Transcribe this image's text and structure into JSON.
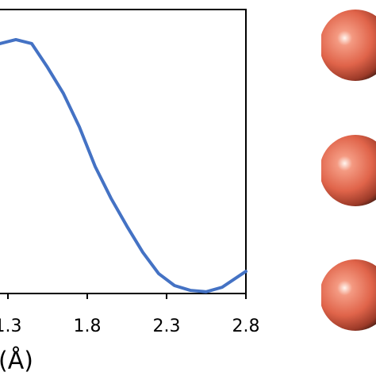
{
  "chart_data": {
    "type": "line",
    "x_label": "(Å)",
    "x": [
      1.25,
      1.35,
      1.45,
      1.55,
      1.65,
      1.75,
      1.85,
      1.95,
      2.05,
      2.15,
      2.25,
      2.35,
      2.45,
      2.55,
      2.65,
      2.8
    ],
    "series": [
      {
        "color": "#4472c4",
        "values": [
          0.88,
          0.894,
          0.88,
          0.796,
          0.704,
          0.587,
          0.447,
          0.335,
          0.237,
          0.145,
          0.07,
          0.028,
          0.011,
          0.006,
          0.022,
          0.078
        ]
      }
    ],
    "xlim": [
      1.2,
      2.8
    ],
    "xticks": [
      1.3,
      1.8,
      2.3,
      2.8
    ],
    "ylim": [
      0,
      1
    ]
  }
}
